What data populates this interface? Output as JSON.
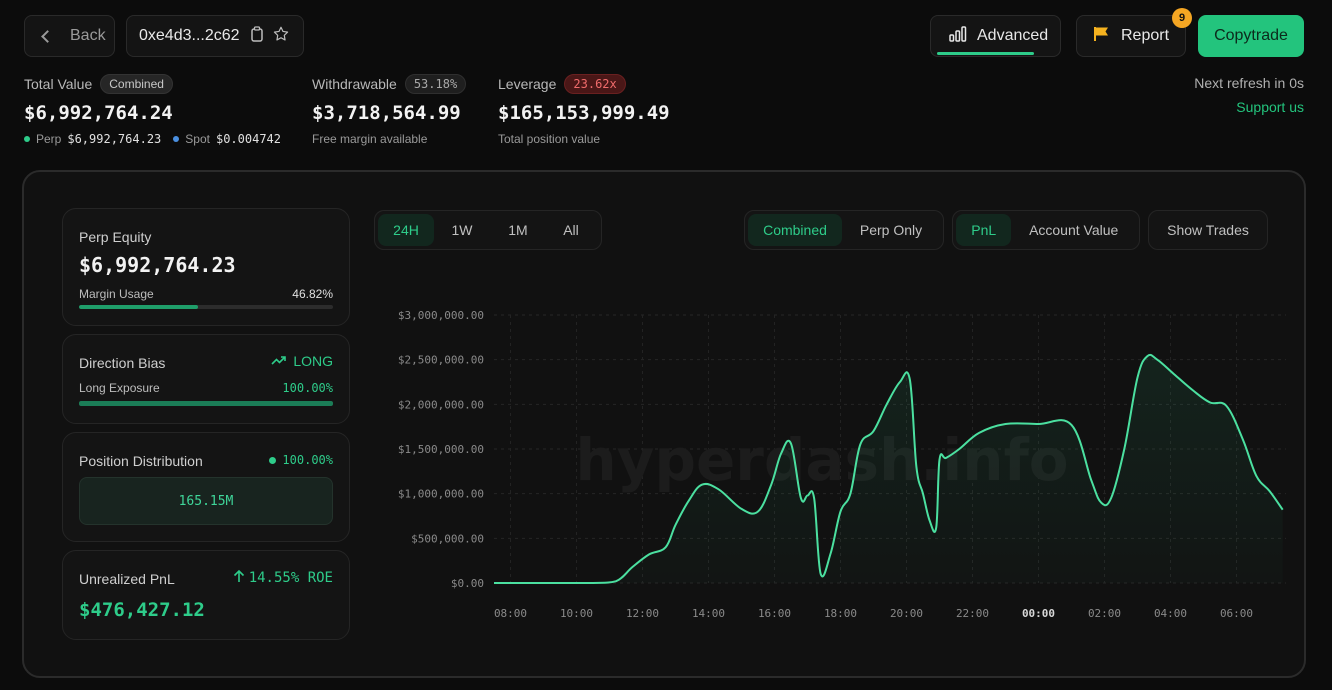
{
  "header": {
    "back_label": "Back",
    "address": "0xe4d3...2c62",
    "advanced_label": "Advanced",
    "report_label": "Report",
    "report_badge": "9",
    "copytrade_label": "Copytrade"
  },
  "stats": {
    "total_value": {
      "label": "Total Value",
      "tag": "Combined",
      "value": "$6,992,764.24",
      "perp_label": "Perp",
      "perp_value": "$6,992,764.23",
      "spot_label": "Spot",
      "spot_value": "$0.004742"
    },
    "withdrawable": {
      "label": "Withdrawable",
      "tag": "53.18%",
      "value": "$3,718,564.99",
      "sub": "Free margin available"
    },
    "leverage": {
      "label": "Leverage",
      "tag": "23.62x",
      "value": "$165,153,999.49",
      "sub": "Total position value"
    },
    "refresh": "Next refresh in 0s",
    "support": "Support us"
  },
  "cards": {
    "perp_equity": {
      "title": "Perp Equity",
      "value": "$6,992,764.23",
      "margin_label": "Margin Usage",
      "margin_value": "46.82%",
      "margin_fraction": 0.4682
    },
    "direction_bias": {
      "title": "Direction Bias",
      "direction": "LONG",
      "exposure_label": "Long Exposure",
      "exposure_value": "100.00%",
      "exposure_fraction": 1.0
    },
    "position_distribution": {
      "title": "Position Distribution",
      "value": "100.00%",
      "box_value": "165.15M"
    },
    "unrealized_pnl": {
      "title": "Unrealized PnL",
      "roe": "14.55% ROE",
      "value": "$476,427.12"
    }
  },
  "controls": {
    "range": [
      "24H",
      "1W",
      "1M",
      "All"
    ],
    "range_active": 0,
    "mode": [
      "Combined",
      "Perp Only"
    ],
    "mode_active": 0,
    "metric": [
      "PnL",
      "Account Value"
    ],
    "metric_active": 0,
    "show_trades": "Show Trades"
  },
  "colors": {
    "accent": "#2ecc8a",
    "positive": "#23c47d",
    "danger": "#f06b6b",
    "badge": "#f5a623"
  },
  "icons": {
    "back": "chevron-left-icon",
    "copy": "clipboard-icon",
    "favorite": "star-icon",
    "advanced": "bar-chart-icon",
    "report": "flag-icon",
    "trend": "trending-up-icon",
    "arrow": "arrow-up-icon"
  },
  "chart_data": {
    "type": "area",
    "watermark": "hyperdash.info",
    "y_ticks": [
      "$0.00",
      "$500,000.00",
      "$1,000,000.00",
      "$1,500,000.00",
      "$2,000,000.00",
      "$2,500,000.00",
      "$3,000,000.00"
    ],
    "ylim": [
      0,
      3000000
    ],
    "x_ticks": [
      "08:00",
      "10:00",
      "12:00",
      "14:00",
      "16:00",
      "18:00",
      "20:00",
      "22:00",
      "00:00",
      "02:00",
      "04:00",
      "06:00"
    ],
    "x_tick_hours": [
      8,
      10,
      12,
      14,
      16,
      18,
      20,
      22,
      24,
      26,
      28,
      30
    ],
    "xlim_hours": [
      7.5,
      31.5
    ],
    "grid": true,
    "series": [
      {
        "x": [
          7.5,
          9.0,
          10.5,
          11.2,
          11.7,
          12.2,
          12.7,
          13.0,
          13.4,
          13.8,
          14.3,
          15.0,
          15.5,
          15.9,
          16.2,
          16.5,
          16.8,
          17.0,
          17.2,
          17.4,
          17.7,
          18.0,
          18.3,
          18.6,
          19.0,
          19.4,
          19.8,
          20.1,
          20.3,
          20.5,
          20.7,
          20.9,
          21.0,
          21.2,
          21.6,
          22.2,
          23.0,
          24.0,
          25.0,
          25.6,
          25.9,
          26.2,
          26.6,
          27.0,
          27.3,
          27.6,
          28.1,
          28.7,
          29.2,
          29.7,
          30.2,
          30.6,
          31.0,
          31.4
        ],
        "y": [
          0,
          0,
          0,
          20000,
          180000,
          320000,
          400000,
          650000,
          920000,
          1100000,
          1050000,
          830000,
          800000,
          1100000,
          1450000,
          1560000,
          950000,
          980000,
          950000,
          100000,
          330000,
          800000,
          1000000,
          1550000,
          1700000,
          2000000,
          2250000,
          2280000,
          1300000,
          1000000,
          700000,
          620000,
          1380000,
          1400000,
          1500000,
          1680000,
          1780000,
          1780000,
          1770000,
          1150000,
          900000,
          950000,
          1500000,
          2300000,
          2540000,
          2500000,
          2340000,
          2150000,
          2020000,
          1980000,
          1600000,
          1200000,
          1030000,
          820000
        ]
      }
    ]
  }
}
